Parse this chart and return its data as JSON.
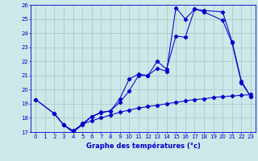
{
  "xlabel": "Graphe des températures (°c)",
  "bg_color": "#cce8e8",
  "grid_color": "#aacccc",
  "line_color": "#0000cc",
  "xlim": [
    -0.5,
    23.5
  ],
  "ylim": [
    17,
    26
  ],
  "xticks": [
    0,
    1,
    2,
    3,
    4,
    5,
    6,
    7,
    8,
    9,
    10,
    11,
    12,
    13,
    14,
    15,
    16,
    17,
    18,
    19,
    20,
    21,
    22,
    23
  ],
  "yticks": [
    17,
    18,
    19,
    20,
    21,
    22,
    23,
    24,
    25,
    26
  ],
  "line1_x": [
    0,
    2,
    3,
    4,
    5,
    6,
    7,
    8,
    9,
    10,
    11,
    12,
    13,
    14,
    15,
    16,
    17,
    18,
    20,
    21,
    22,
    23
  ],
  "line1_y": [
    19.3,
    18.3,
    17.5,
    17.0,
    17.5,
    18.1,
    18.4,
    18.5,
    19.1,
    19.9,
    21.0,
    21.0,
    21.5,
    21.3,
    25.8,
    25.0,
    25.7,
    25.5,
    24.9,
    23.3,
    20.5,
    19.5
  ],
  "line2_x": [
    0,
    2,
    3,
    4,
    5,
    6,
    7,
    8,
    9,
    10,
    11,
    12,
    13,
    14,
    15,
    16,
    17,
    18,
    20,
    21,
    22,
    23
  ],
  "line2_y": [
    19.3,
    18.3,
    17.5,
    17.0,
    17.6,
    18.1,
    18.35,
    18.5,
    19.35,
    20.75,
    21.1,
    21.0,
    22.0,
    21.45,
    23.8,
    23.7,
    25.7,
    25.6,
    25.5,
    23.4,
    20.6,
    19.5
  ],
  "line3_x": [
    2,
    3,
    4,
    5,
    6,
    7,
    8,
    9,
    10,
    11,
    12,
    13,
    14,
    15,
    16,
    17,
    18,
    19,
    20,
    21,
    22,
    23
  ],
  "line3_y": [
    18.3,
    17.5,
    17.1,
    17.55,
    17.8,
    18.0,
    18.2,
    18.4,
    18.55,
    18.7,
    18.8,
    18.9,
    19.0,
    19.1,
    19.2,
    19.3,
    19.35,
    19.45,
    19.5,
    19.55,
    19.6,
    19.65
  ],
  "xlabel_fontsize": 6.0,
  "tick_fontsize": 5.0
}
